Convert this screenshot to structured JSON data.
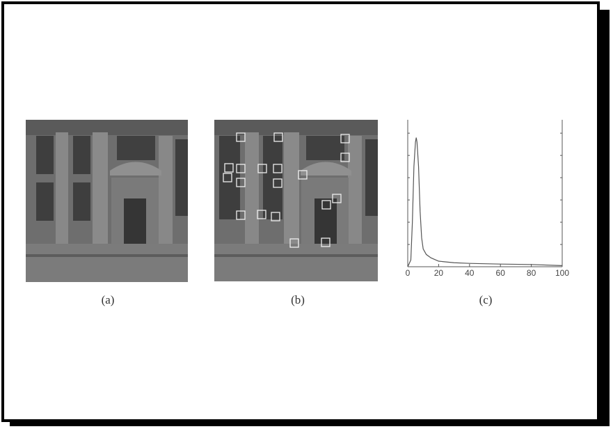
{
  "figure": {
    "captions": [
      "(a)",
      "(b)",
      "(c)"
    ]
  },
  "chart_data": {
    "type": "line",
    "x": [
      0,
      2,
      3,
      4,
      5,
      5.5,
      6,
      7,
      8,
      9,
      10,
      12,
      15,
      20,
      30,
      40,
      60,
      80,
      100
    ],
    "series": [
      {
        "color": "#555555",
        "values": [
          0,
          0.3,
          2,
          4.5,
          5.6,
          5.8,
          5.6,
          4.5,
          2.5,
          1.3,
          0.8,
          0.55,
          0.4,
          0.25,
          0.18,
          0.15,
          0.12,
          0.1,
          0.05
        ]
      }
    ],
    "xlim": [
      0,
      100
    ],
    "xticks": [
      0,
      20,
      40,
      60,
      80,
      100
    ],
    "ylim": [
      0,
      6.6
    ],
    "yticks": [
      1,
      2,
      3,
      4,
      5,
      6
    ]
  }
}
